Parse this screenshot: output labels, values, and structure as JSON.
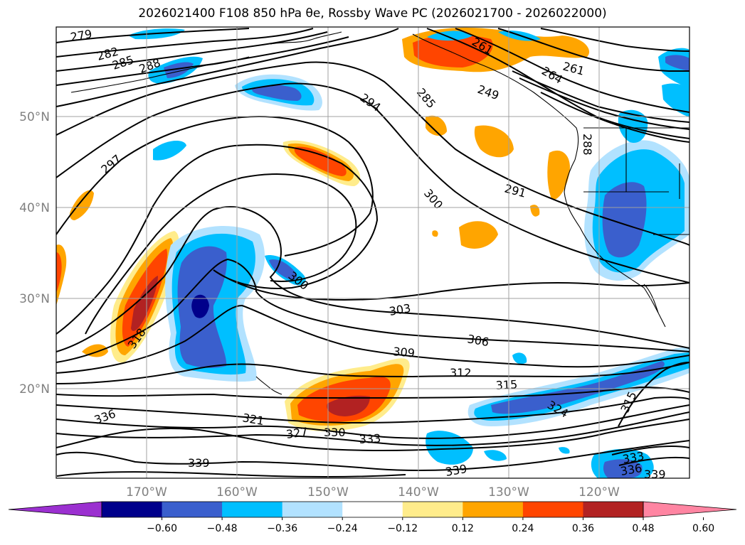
{
  "title": "2026021400 F108 850 hPa θe, Rossby Wave PC (2026021700 - 2026022000)",
  "lat_labels": [
    "50°N",
    "40°N",
    "30°N",
    "20°N"
  ],
  "lon_labels": [
    "170°W",
    "160°W",
    "150°W",
    "140°W",
    "130°W",
    "120°W"
  ],
  "colorbar": {
    "ticks": [
      "−0.60",
      "−0.48",
      "−0.36",
      "−0.24",
      "−0.12",
      "0.12",
      "0.24",
      "0.36",
      "0.48",
      "0.60"
    ],
    "colors": [
      "#9b30d0",
      "#00008b",
      "#3a5fcd",
      "#00bfff",
      "#b2e2ff",
      "#ffffff",
      "#ffec8b",
      "#ffa500",
      "#ff4500",
      "#b22222",
      "#ff85a2"
    ]
  },
  "contour_labels": [
    "279",
    "282",
    "285",
    "288",
    "294",
    "285",
    "261",
    "264",
    "261",
    "249",
    "288",
    "297",
    "300",
    "291",
    "300",
    "303",
    "306",
    "309",
    "312",
    "315",
    "318",
    "321",
    "324",
    "327",
    "330",
    "333",
    "336",
    "339",
    "339",
    "315",
    "336",
    "333",
    "339"
  ]
}
